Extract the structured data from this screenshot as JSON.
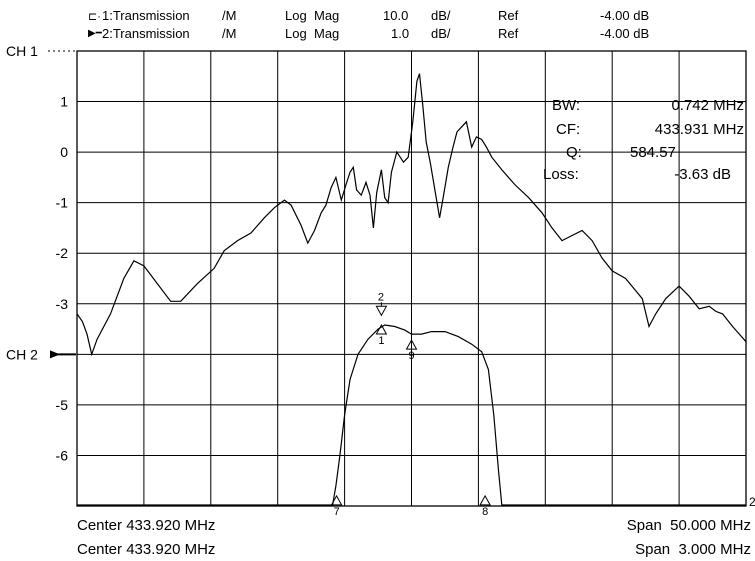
{
  "header": {
    "rows": [
      {
        "name": "1:Transmission",
        "mode": "/M",
        "fmt1": "Log",
        "fmt2": "Mag",
        "scale": "10.0",
        "unit": "dB/",
        "ref_label": "Ref",
        "ref_value": "-4.00 dB"
      },
      {
        "name": "2:Transmission",
        "mode": "/M",
        "fmt1": "Log",
        "fmt2": "Mag",
        "scale": "1.0",
        "unit": "dB/",
        "ref_label": "Ref",
        "ref_value": "-4.00 dB"
      }
    ]
  },
  "footer": {
    "center1": "Center 433.920 MHz",
    "center2": "Center 433.920 MHz",
    "span1": "Span  50.000 MHz",
    "span2": "Span  3.000 MHz"
  },
  "measurements": {
    "rows": [
      {
        "label": "BW:",
        "value": "0.742 MHz"
      },
      {
        "label": "CF:",
        "value": "433.931 MHz"
      },
      {
        "label": "Q:",
        "value": "584.57"
      },
      {
        "label": "Loss:",
        "value": "-3.63 dB"
      }
    ]
  },
  "colors": {
    "trace": "#000000",
    "grid": "#000000",
    "background": "#ffffff"
  },
  "chart_data": {
    "type": "line",
    "grid": true,
    "xlim": [
      0,
      10
    ],
    "ylim": [
      -7,
      2
    ],
    "y_tick_labels": [
      {
        "y": 2,
        "label": "CH 1"
      },
      {
        "y": 1,
        "label": "1"
      },
      {
        "y": 0,
        "label": "0"
      },
      {
        "y": -1,
        "label": "-1"
      },
      {
        "y": -2,
        "label": "-2"
      },
      {
        "y": -3,
        "label": "-3"
      },
      {
        "y": -4,
        "label": "CH 2"
      },
      {
        "y": -5,
        "label": "-5"
      },
      {
        "y": -6,
        "label": "-6"
      }
    ],
    "right_edge_label": "2",
    "series": [
      {
        "points": [
          [
            0,
            -3.2
          ],
          [
            0.08,
            -3.35
          ],
          [
            0.15,
            -3.6
          ],
          [
            0.22,
            -4.0
          ],
          [
            0.3,
            -3.7
          ],
          [
            0.5,
            -3.2
          ],
          [
            0.7,
            -2.5
          ],
          [
            0.85,
            -2.15
          ],
          [
            1.0,
            -2.25
          ],
          [
            1.2,
            -2.6
          ],
          [
            1.4,
            -2.95
          ],
          [
            1.55,
            -2.95
          ],
          [
            1.8,
            -2.6
          ],
          [
            2.05,
            -2.3
          ],
          [
            2.2,
            -1.95
          ],
          [
            2.4,
            -1.75
          ],
          [
            2.6,
            -1.6
          ],
          [
            2.8,
            -1.3
          ],
          [
            2.95,
            -1.1
          ],
          [
            3.1,
            -0.95
          ],
          [
            3.2,
            -1.05
          ],
          [
            3.35,
            -1.45
          ],
          [
            3.45,
            -1.8
          ],
          [
            3.55,
            -1.55
          ],
          [
            3.65,
            -1.2
          ],
          [
            3.72,
            -1.05
          ],
          [
            3.8,
            -0.7
          ],
          [
            3.87,
            -0.5
          ],
          [
            3.95,
            -0.95
          ],
          [
            4.02,
            -0.65
          ],
          [
            4.08,
            -0.4
          ],
          [
            4.13,
            -0.3
          ],
          [
            4.18,
            -0.75
          ],
          [
            4.25,
            -0.85
          ],
          [
            4.32,
            -0.6
          ],
          [
            4.38,
            -0.85
          ],
          [
            4.43,
            -1.5
          ],
          [
            4.48,
            -0.8
          ],
          [
            4.55,
            -0.35
          ],
          [
            4.6,
            -0.9
          ],
          [
            4.65,
            -1.0
          ],
          [
            4.7,
            -0.4
          ],
          [
            4.78,
            0.0
          ],
          [
            4.88,
            -0.2
          ],
          [
            4.95,
            -0.1
          ],
          [
            5.02,
            0.6
          ],
          [
            5.08,
            1.4
          ],
          [
            5.12,
            1.55
          ],
          [
            5.17,
            0.9
          ],
          [
            5.22,
            0.2
          ],
          [
            5.28,
            -0.2
          ],
          [
            5.35,
            -0.75
          ],
          [
            5.42,
            -1.3
          ],
          [
            5.48,
            -0.85
          ],
          [
            5.55,
            -0.3
          ],
          [
            5.62,
            0.1
          ],
          [
            5.68,
            0.4
          ],
          [
            5.75,
            0.5
          ],
          [
            5.82,
            0.6
          ],
          [
            5.9,
            0.1
          ],
          [
            5.97,
            0.3
          ],
          [
            6.05,
            0.25
          ],
          [
            6.12,
            0.1
          ],
          [
            6.2,
            -0.1
          ],
          [
            6.35,
            -0.35
          ],
          [
            6.55,
            -0.65
          ],
          [
            6.75,
            -0.9
          ],
          [
            6.95,
            -1.2
          ],
          [
            7.1,
            -1.5
          ],
          [
            7.25,
            -1.75
          ],
          [
            7.4,
            -1.65
          ],
          [
            7.55,
            -1.55
          ],
          [
            7.7,
            -1.75
          ],
          [
            7.85,
            -2.1
          ],
          [
            8.0,
            -2.35
          ],
          [
            8.2,
            -2.5
          ],
          [
            8.45,
            -2.9
          ],
          [
            8.55,
            -3.45
          ],
          [
            8.65,
            -3.2
          ],
          [
            8.8,
            -2.9
          ],
          [
            9.0,
            -2.65
          ],
          [
            9.15,
            -2.85
          ],
          [
            9.3,
            -3.1
          ],
          [
            9.45,
            -3.05
          ],
          [
            9.55,
            -3.15
          ],
          [
            9.65,
            -3.2
          ],
          [
            9.8,
            -3.45
          ],
          [
            9.9,
            -3.6
          ],
          [
            10.0,
            -3.75
          ]
        ]
      },
      {
        "points": [
          [
            0,
            -6.98
          ],
          [
            3.82,
            -6.98
          ],
          [
            3.87,
            -6.6
          ],
          [
            3.93,
            -6.0
          ],
          [
            4.0,
            -5.2
          ],
          [
            4.08,
            -4.5
          ],
          [
            4.2,
            -4.0
          ],
          [
            4.35,
            -3.7
          ],
          [
            4.5,
            -3.5
          ],
          [
            4.6,
            -3.42
          ],
          [
            4.75,
            -3.45
          ],
          [
            4.9,
            -3.52
          ],
          [
            5.0,
            -3.6
          ],
          [
            5.15,
            -3.6
          ],
          [
            5.3,
            -3.55
          ],
          [
            5.5,
            -3.55
          ],
          [
            5.7,
            -3.65
          ],
          [
            5.9,
            -3.8
          ],
          [
            6.05,
            -3.95
          ],
          [
            6.15,
            -4.3
          ],
          [
            6.23,
            -5.2
          ],
          [
            6.3,
            -6.3
          ],
          [
            6.35,
            -6.98
          ],
          [
            10.0,
            -6.98
          ]
        ]
      }
    ],
    "markers": [
      {
        "x": 3.88,
        "y": -6.8,
        "label": "7"
      },
      {
        "x": 4.55,
        "y": -3.42,
        "label": "1"
      },
      {
        "x": 4.55,
        "y": -3.05,
        "label": "2"
      },
      {
        "x": 5.0,
        "y": -3.72,
        "label": "9"
      },
      {
        "x": 6.1,
        "y": -6.8,
        "label": "8"
      }
    ]
  }
}
